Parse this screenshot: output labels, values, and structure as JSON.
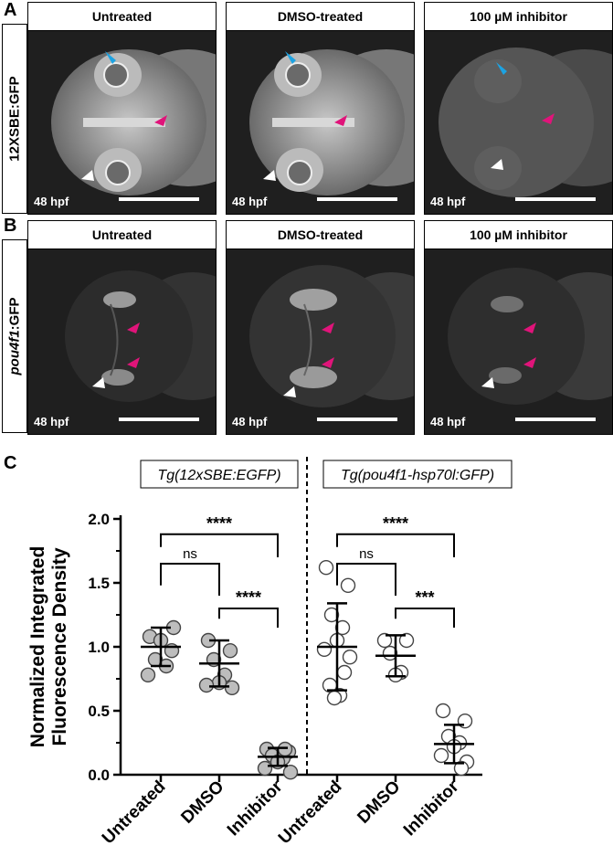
{
  "panel_letters": {
    "a": "A",
    "b": "B",
    "c": "C"
  },
  "row_a": {
    "label": "12XSBE:GFP",
    "panels": [
      {
        "title": "Untreated",
        "stage": "48 hpf"
      },
      {
        "title": "DMSO-treated",
        "stage": "48 hpf"
      },
      {
        "title": "100 µM inhibitor",
        "stage": "48 hpf"
      }
    ]
  },
  "row_b": {
    "label_italic": "pou4f1",
    "label_rest": ":GFP",
    "panels": [
      {
        "title": "Untreated",
        "stage": "48 hpf"
      },
      {
        "title": "DMSO-treated",
        "stage": "48 hpf"
      },
      {
        "title": "100 µM inhibitor",
        "stage": "48 hpf"
      }
    ]
  },
  "arrow_colors": {
    "blue": "#1ca3e3",
    "magenta": "#e0147a",
    "white": "#ffffff"
  },
  "chart_data": {
    "type": "scatter",
    "ylabel_line1": "Normalized Integrated",
    "ylabel_line2": "Fluorescence Density",
    "ylim": [
      0,
      2.0
    ],
    "yticks": [
      "0.0",
      "0.5",
      "1.0",
      "1.5",
      "2.0"
    ],
    "categories": [
      "Untreated",
      "DMSO",
      "Inhibitor",
      "Untreated",
      "DMSO",
      "Inhibitor"
    ],
    "groups": [
      {
        "title": "Tg(12xSBE:EGFP)",
        "fill": "#bdbdbd",
        "series": [
          {
            "category": "Untreated",
            "points": [
              1.08,
              0.97,
              0.9,
              0.85,
              1.05,
              0.78,
              1.15
            ],
            "mean": 1.0,
            "sd": 0.15
          },
          {
            "category": "DMSO",
            "points": [
              1.05,
              0.97,
              0.9,
              0.78,
              0.72,
              0.7,
              0.68
            ],
            "mean": 0.87,
            "sd": 0.18
          },
          {
            "category": "Inhibitor",
            "points": [
              0.2,
              0.18,
              0.15,
              0.13,
              0.1,
              0.05,
              0.02,
              0.2
            ],
            "mean": 0.14,
            "sd": 0.07
          }
        ],
        "comparisons": [
          {
            "from": 0,
            "to": 1,
            "label": "ns"
          },
          {
            "from": 0,
            "to": 2,
            "label": "****"
          },
          {
            "from": 1,
            "to": 2,
            "label": "****"
          }
        ]
      },
      {
        "title": "Tg(pou4f1-hsp70l:GFP)",
        "fill": "#ffffff",
        "series": [
          {
            "category": "Untreated",
            "points": [
              1.62,
              1.48,
              1.25,
              1.15,
              1.05,
              0.98,
              0.92,
              0.8,
              0.7,
              0.62,
              0.6
            ],
            "mean": 1.0,
            "sd": 0.34
          },
          {
            "category": "DMSO",
            "points": [
              1.05,
              1.05,
              0.95,
              0.8,
              0.78
            ],
            "mean": 0.93,
            "sd": 0.16
          },
          {
            "category": "Inhibitor",
            "points": [
              0.5,
              0.42,
              0.3,
              0.25,
              0.22,
              0.15,
              0.1,
              0.05
            ],
            "mean": 0.24,
            "sd": 0.15
          }
        ],
        "comparisons": [
          {
            "from": 0,
            "to": 1,
            "label": "ns"
          },
          {
            "from": 0,
            "to": 2,
            "label": "****"
          },
          {
            "from": 1,
            "to": 2,
            "label": "***"
          }
        ]
      }
    ]
  }
}
